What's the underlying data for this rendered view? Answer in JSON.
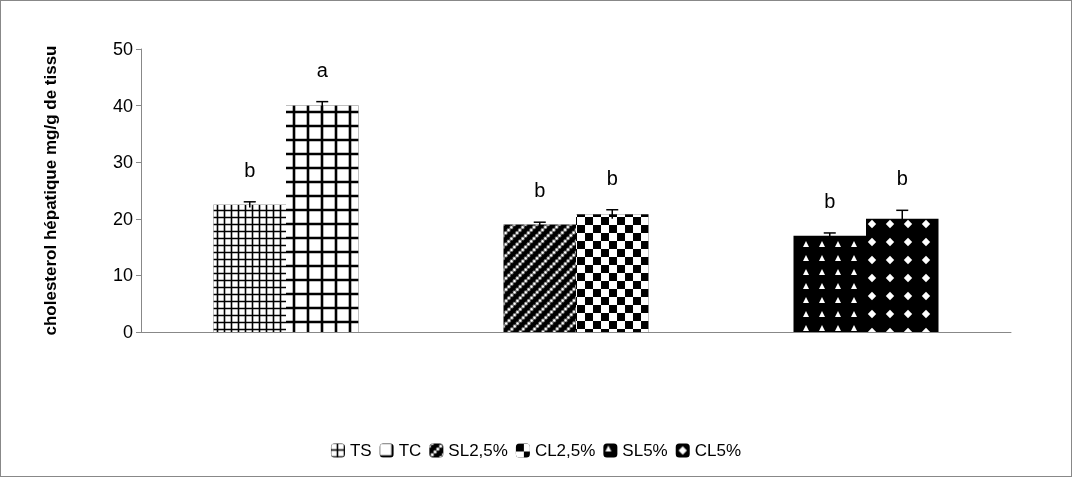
{
  "chart_data": {
    "type": "bar",
    "ylabel": "cholesterol hépatique mg/g de tissu",
    "categories": [
      null,
      null,
      null
    ],
    "series": [
      {
        "name": "TS",
        "color": "#000000",
        "values": [
          22.5,
          null,
          null
        ],
        "errors": [
          0.5,
          null,
          null
        ]
      },
      {
        "name": "TC",
        "color": "#000000",
        "values": [
          40,
          null,
          null
        ],
        "errors": [
          0.7,
          null,
          null
        ]
      },
      {
        "name": "SL2,5%",
        "color": "#000000",
        "values": [
          null,
          19,
          null
        ],
        "errors": [
          null,
          0.4,
          null
        ]
      },
      {
        "name": "CL2,5%",
        "color": "#000000",
        "values": [
          null,
          20.8,
          null
        ],
        "errors": [
          null,
          0.8,
          null
        ]
      },
      {
        "name": "SL5%",
        "color": "#000000",
        "values": [
          null,
          null,
          17
        ],
        "errors": [
          null,
          null,
          0.5
        ]
      },
      {
        "name": "CL5%",
        "color": "#000000",
        "values": [
          null,
          null,
          20
        ],
        "errors": [
          null,
          null,
          1.5
        ]
      }
    ],
    "annotations": [
      "b",
      "a",
      "b",
      "b",
      "b",
      "b"
    ],
    "ylim": [
      0,
      50
    ],
    "yticks": [
      0,
      10,
      20,
      30,
      40,
      50
    ],
    "grid": false,
    "legend": "bottom"
  }
}
